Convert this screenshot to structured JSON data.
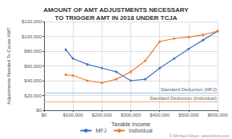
{
  "chart_data": {
    "type": "line",
    "title": "AMOUNT OF AMT ADJUSTMENTS NECESSARY\nTO TRIGGER AMT IN 2018 UNDER TCJA",
    "xlabel": "Taxable Income",
    "ylabel": "Adjustments Needed To Cause AMT",
    "xlim": [
      0,
      600000
    ],
    "ylim": [
      0,
      120000
    ],
    "xticks": [
      {
        "value": 0,
        "label": "$0"
      },
      {
        "value": 100000,
        "label": "$100,000"
      },
      {
        "value": 200000,
        "label": "$200,000"
      },
      {
        "value": 300000,
        "label": "$300,000"
      },
      {
        "value": 400000,
        "label": "$400,000"
      },
      {
        "value": 500000,
        "label": "$500,000"
      },
      {
        "value": 600000,
        "label": "$600,000"
      }
    ],
    "yticks": [
      {
        "value": 0,
        "label": "$0"
      },
      {
        "value": 20000,
        "label": "$20,000"
      },
      {
        "value": 40000,
        "label": "$40,000"
      },
      {
        "value": 60000,
        "label": "$60,000"
      },
      {
        "value": 80000,
        "label": "$80,000"
      },
      {
        "value": 100000,
        "label": "$100,000"
      },
      {
        "value": 120000,
        "label": "$120,000"
      }
    ],
    "grid": true,
    "legend": "bottom",
    "x": [
      75000,
      100000,
      150000,
      200000,
      250000,
      300000,
      350000,
      400000,
      450000,
      500000,
      550000,
      600000
    ],
    "series": [
      {
        "name": "MFJ",
        "color": "#4472c4",
        "marker": "circle",
        "values": [
          82000,
          70000,
          62000,
          57000,
          52000,
          40000,
          42000,
          57000,
          70000,
          83000,
          95000,
          107000
        ]
      },
      {
        "name": "Individual",
        "color": "#ed7d31",
        "marker": "circle",
        "values": [
          48000,
          47000,
          40000,
          37000,
          42000,
          52000,
          67000,
          93000,
          97000,
          99000,
          102000,
          107000
        ]
      }
    ],
    "reference_lines": [
      {
        "y": 24000,
        "label": "Standard Deduction (MFJ)",
        "color": "#9dc3e6"
      },
      {
        "y": 12000,
        "label": "Standard Deduction (Individual)",
        "color": "#f4b183"
      }
    ],
    "annotations": [
      {
        "text": "© Michael Kitces  www.kitces.com"
      }
    ]
  }
}
